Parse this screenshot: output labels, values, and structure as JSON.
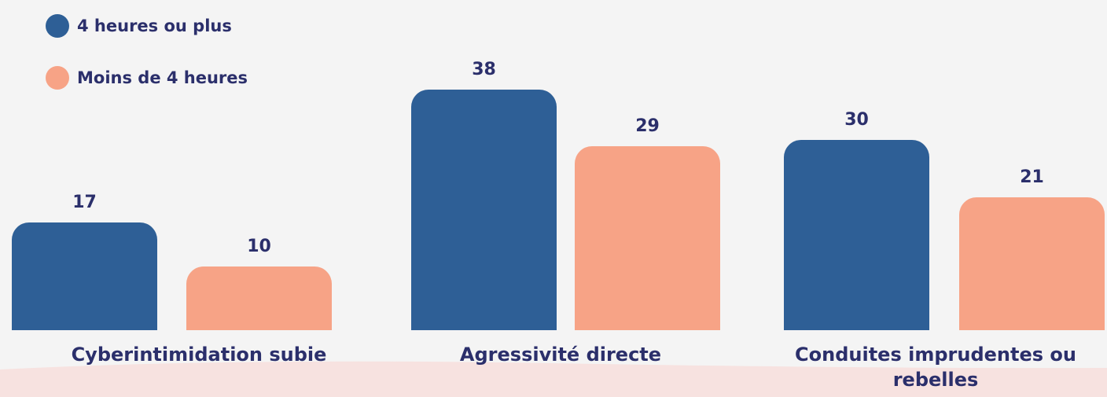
{
  "chart_data": {
    "type": "bar",
    "categories": [
      "Cyberintimidation subie",
      "Agressivité directe",
      "Conduites imprudentes ou rebelles"
    ],
    "series": [
      {
        "name": "4 heures ou plus",
        "color": "#2e5f96",
        "values": [
          17,
          38,
          30
        ]
      },
      {
        "name": "Moins de 4 heures",
        "color": "#f7a386",
        "values": [
          10,
          29,
          21
        ]
      }
    ]
  }
}
